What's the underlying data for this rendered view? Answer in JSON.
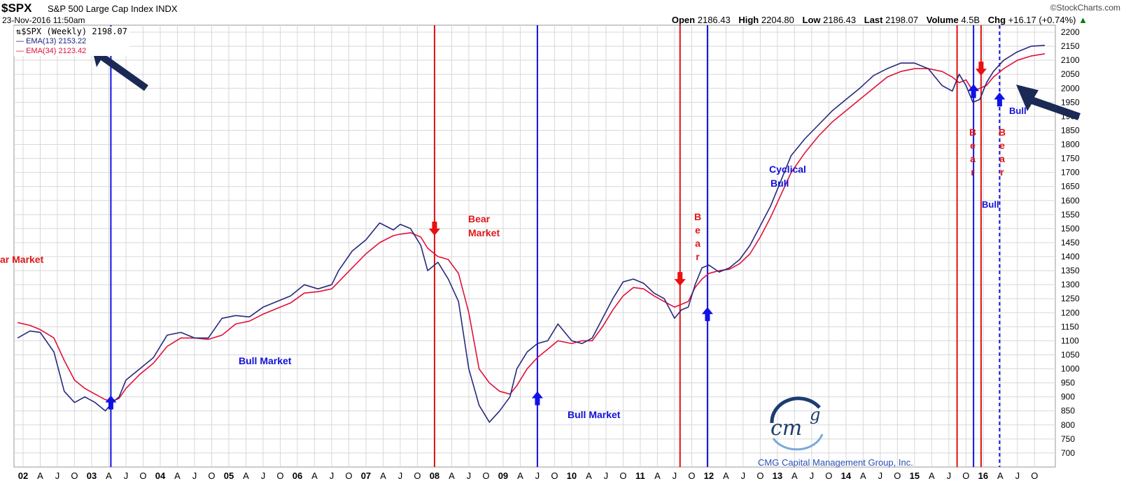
{
  "header": {
    "symbol": "$SPX",
    "name": "S&P 500 Large Cap Index",
    "exchange": "INDX",
    "date": "23-Nov-2016 11:50am",
    "brand": "©StockCharts.com",
    "open_label": "Open",
    "open": "2186.43",
    "high_label": "High",
    "high": "2204.80",
    "low_label": "Low",
    "low": "2186.43",
    "last_label": "Last",
    "last": "2198.07",
    "volume_label": "Volume",
    "volume": "4.5B",
    "chg_label": "Chg",
    "chg": "+16.17 (+0.74%)"
  },
  "legend": {
    "main": "$SPX (Weekly) 2198.07",
    "ema13": "EMA(13) 2153.22",
    "ema34": "EMA(34) 2123.42"
  },
  "colors": {
    "ema13": "#27297e",
    "ema34": "#e0103a",
    "bull_line": "#1010e0",
    "bear_line": "#e01010",
    "grid": "#d8d8d8",
    "annotation_bull": "#1010d8",
    "annotation_bear": "#e01818"
  },
  "annotations": {
    "bear_market_left": "ar Market",
    "bull_market_1": "Bull Market",
    "bear_market_2a": "Bear",
    "bear_market_2b": "Market",
    "bull_market_2": "Bull Market",
    "bear_vertical": "B e a r",
    "cyclical_a": "Cyclical",
    "cyclical_b": "Bull",
    "bull_small": "Bull",
    "bull_right": "Bull"
  },
  "logo": {
    "mark_cm": "cm",
    "mark_g": "g",
    "text": "CMG Capital Management Group, Inc."
  },
  "chart_data": {
    "type": "line",
    "title": "$SPX S&P 500 Large Cap Index INDX",
    "ylim": [
      650,
      2225
    ],
    "y_ticks": [
      700,
      750,
      800,
      850,
      900,
      950,
      1000,
      1050,
      1100,
      1150,
      1200,
      1250,
      1300,
      1350,
      1400,
      1450,
      1500,
      1550,
      1600,
      1650,
      1700,
      1750,
      1800,
      1850,
      1900,
      1950,
      2000,
      2050,
      2100,
      2150,
      2200
    ],
    "x_range": [
      2002.0,
      2016.92
    ],
    "x_tick_labels": [
      "02",
      "A",
      "J",
      "O",
      "03",
      "A",
      "J",
      "O",
      "04",
      "A",
      "J",
      "O",
      "05",
      "A",
      "J",
      "O",
      "06",
      "A",
      "J",
      "O",
      "07",
      "A",
      "J",
      "O",
      "08",
      "A",
      "J",
      "O",
      "09",
      "A",
      "J",
      "O",
      "10",
      "A",
      "J",
      "O",
      "11",
      "A",
      "J",
      "O",
      "12",
      "A",
      "J",
      "O",
      "13",
      "A",
      "J",
      "O",
      "14",
      "A",
      "J",
      "O",
      "15",
      "A",
      "J",
      "O",
      "16",
      "A",
      "J",
      "O"
    ],
    "series": [
      {
        "name": "EMA(13)",
        "x": [
          2001.92,
          2002.1,
          2002.25,
          2002.45,
          2002.6,
          2002.75,
          2002.9,
          2003.05,
          2003.2,
          2003.3,
          2003.4,
          2003.5,
          2003.7,
          2003.9,
          2004.1,
          2004.3,
          2004.5,
          2004.7,
          2004.9,
          2005.1,
          2005.3,
          2005.5,
          2005.7,
          2005.9,
          2006.1,
          2006.3,
          2006.5,
          2006.6,
          2006.8,
          2007.0,
          2007.2,
          2007.4,
          2007.5,
          2007.65,
          2007.8,
          2007.9,
          2008.05,
          2008.2,
          2008.35,
          2008.5,
          2008.65,
          2008.8,
          2008.95,
          2009.1,
          2009.2,
          2009.35,
          2009.5,
          2009.65,
          2009.8,
          2010.0,
          2010.15,
          2010.3,
          2010.45,
          2010.6,
          2010.75,
          2010.9,
          2011.05,
          2011.2,
          2011.35,
          2011.5,
          2011.6,
          2011.7,
          2011.8,
          2011.9,
          2012.0,
          2012.15,
          2012.3,
          2012.45,
          2012.6,
          2012.75,
          2012.9,
          2013.05,
          2013.2,
          2013.4,
          2013.6,
          2013.8,
          2014.0,
          2014.2,
          2014.4,
          2014.6,
          2014.8,
          2015.0,
          2015.2,
          2015.4,
          2015.55,
          2015.65,
          2015.75,
          2015.85,
          2015.95,
          2016.05,
          2016.15,
          2016.3,
          2016.5,
          2016.7,
          2016.9
        ],
        "values": [
          1110,
          1135,
          1130,
          1060,
          920,
          880,
          900,
          880,
          850,
          880,
          900,
          960,
          1000,
          1040,
          1120,
          1130,
          1110,
          1110,
          1180,
          1190,
          1185,
          1220,
          1240,
          1260,
          1300,
          1285,
          1300,
          1350,
          1420,
          1460,
          1520,
          1495,
          1515,
          1500,
          1440,
          1350,
          1380,
          1320,
          1240,
          1000,
          870,
          810,
          850,
          900,
          1000,
          1060,
          1090,
          1100,
          1160,
          1100,
          1090,
          1110,
          1180,
          1250,
          1310,
          1320,
          1305,
          1270,
          1250,
          1180,
          1210,
          1220,
          1300,
          1360,
          1370,
          1345,
          1360,
          1390,
          1440,
          1510,
          1580,
          1670,
          1760,
          1820,
          1870,
          1920,
          1960,
          2000,
          2045,
          2070,
          2090,
          2090,
          2070,
          2010,
          1990,
          2050,
          2010,
          1950,
          1960,
          2020,
          2060,
          2100,
          2130,
          2150,
          2153
        ]
      },
      {
        "name": "EMA(34)",
        "x": [
          2001.92,
          2002.1,
          2002.25,
          2002.45,
          2002.6,
          2002.75,
          2002.9,
          2003.05,
          2003.2,
          2003.3,
          2003.4,
          2003.5,
          2003.7,
          2003.9,
          2004.1,
          2004.3,
          2004.5,
          2004.7,
          2004.9,
          2005.1,
          2005.3,
          2005.5,
          2005.7,
          2005.9,
          2006.1,
          2006.3,
          2006.5,
          2006.6,
          2006.8,
          2007.0,
          2007.2,
          2007.4,
          2007.5,
          2007.65,
          2007.8,
          2007.9,
          2008.05,
          2008.2,
          2008.35,
          2008.5,
          2008.65,
          2008.8,
          2008.95,
          2009.1,
          2009.2,
          2009.35,
          2009.5,
          2009.65,
          2009.8,
          2010.0,
          2010.15,
          2010.3,
          2010.45,
          2010.6,
          2010.75,
          2010.9,
          2011.05,
          2011.2,
          2011.35,
          2011.5,
          2011.6,
          2011.7,
          2011.8,
          2011.9,
          2012.0,
          2012.15,
          2012.3,
          2012.45,
          2012.6,
          2012.75,
          2012.9,
          2013.05,
          2013.2,
          2013.4,
          2013.6,
          2013.8,
          2014.0,
          2014.2,
          2014.4,
          2014.6,
          2014.8,
          2015.0,
          2015.2,
          2015.4,
          2015.55,
          2015.65,
          2015.75,
          2015.85,
          2015.95,
          2016.05,
          2016.15,
          2016.3,
          2016.5,
          2016.7,
          2016.9
        ],
        "values": [
          1165,
          1155,
          1140,
          1110,
          1030,
          960,
          930,
          910,
          890,
          885,
          895,
          930,
          980,
          1020,
          1080,
          1110,
          1110,
          1105,
          1120,
          1160,
          1170,
          1195,
          1215,
          1235,
          1270,
          1275,
          1285,
          1310,
          1360,
          1410,
          1450,
          1475,
          1480,
          1485,
          1470,
          1430,
          1400,
          1390,
          1340,
          1200,
          1000,
          950,
          920,
          910,
          940,
          1000,
          1040,
          1070,
          1100,
          1090,
          1100,
          1100,
          1150,
          1210,
          1260,
          1290,
          1285,
          1260,
          1240,
          1220,
          1230,
          1240,
          1290,
          1320,
          1340,
          1350,
          1355,
          1375,
          1410,
          1470,
          1540,
          1620,
          1700,
          1770,
          1830,
          1880,
          1920,
          1960,
          2000,
          2040,
          2060,
          2070,
          2070,
          2060,
          2040,
          2020,
          2030,
          1990,
          2000,
          2010,
          2040,
          2070,
          2100,
          2115,
          2123
        ]
      }
    ],
    "signals": [
      {
        "type": "bull",
        "x": 2003.28,
        "arrow": "up",
        "arrow_y": 900
      },
      {
        "type": "bear",
        "x": 2008.0,
        "arrow": "down",
        "arrow_y": 1480
      },
      {
        "type": "bull",
        "x": 2009.5,
        "arrow": "up",
        "arrow_y": 915
      },
      {
        "type": "bear",
        "x": 2011.58,
        "arrow": "down",
        "arrow_y": 1300
      },
      {
        "type": "bull",
        "x": 2011.98,
        "arrow": "up",
        "arrow_y": 1215
      },
      {
        "type": "bear",
        "x": 2015.62,
        "arrow": "none"
      },
      {
        "type": "bull",
        "x": 2015.86,
        "arrow": "up",
        "arrow_y": 2010
      },
      {
        "type": "bear",
        "x": 2015.97,
        "arrow": "down",
        "arrow_y": 2050
      },
      {
        "type": "bull",
        "x": 2016.24,
        "arrow": "up",
        "arrow_y": 1980,
        "dashed": true
      }
    ],
    "grid": true
  }
}
